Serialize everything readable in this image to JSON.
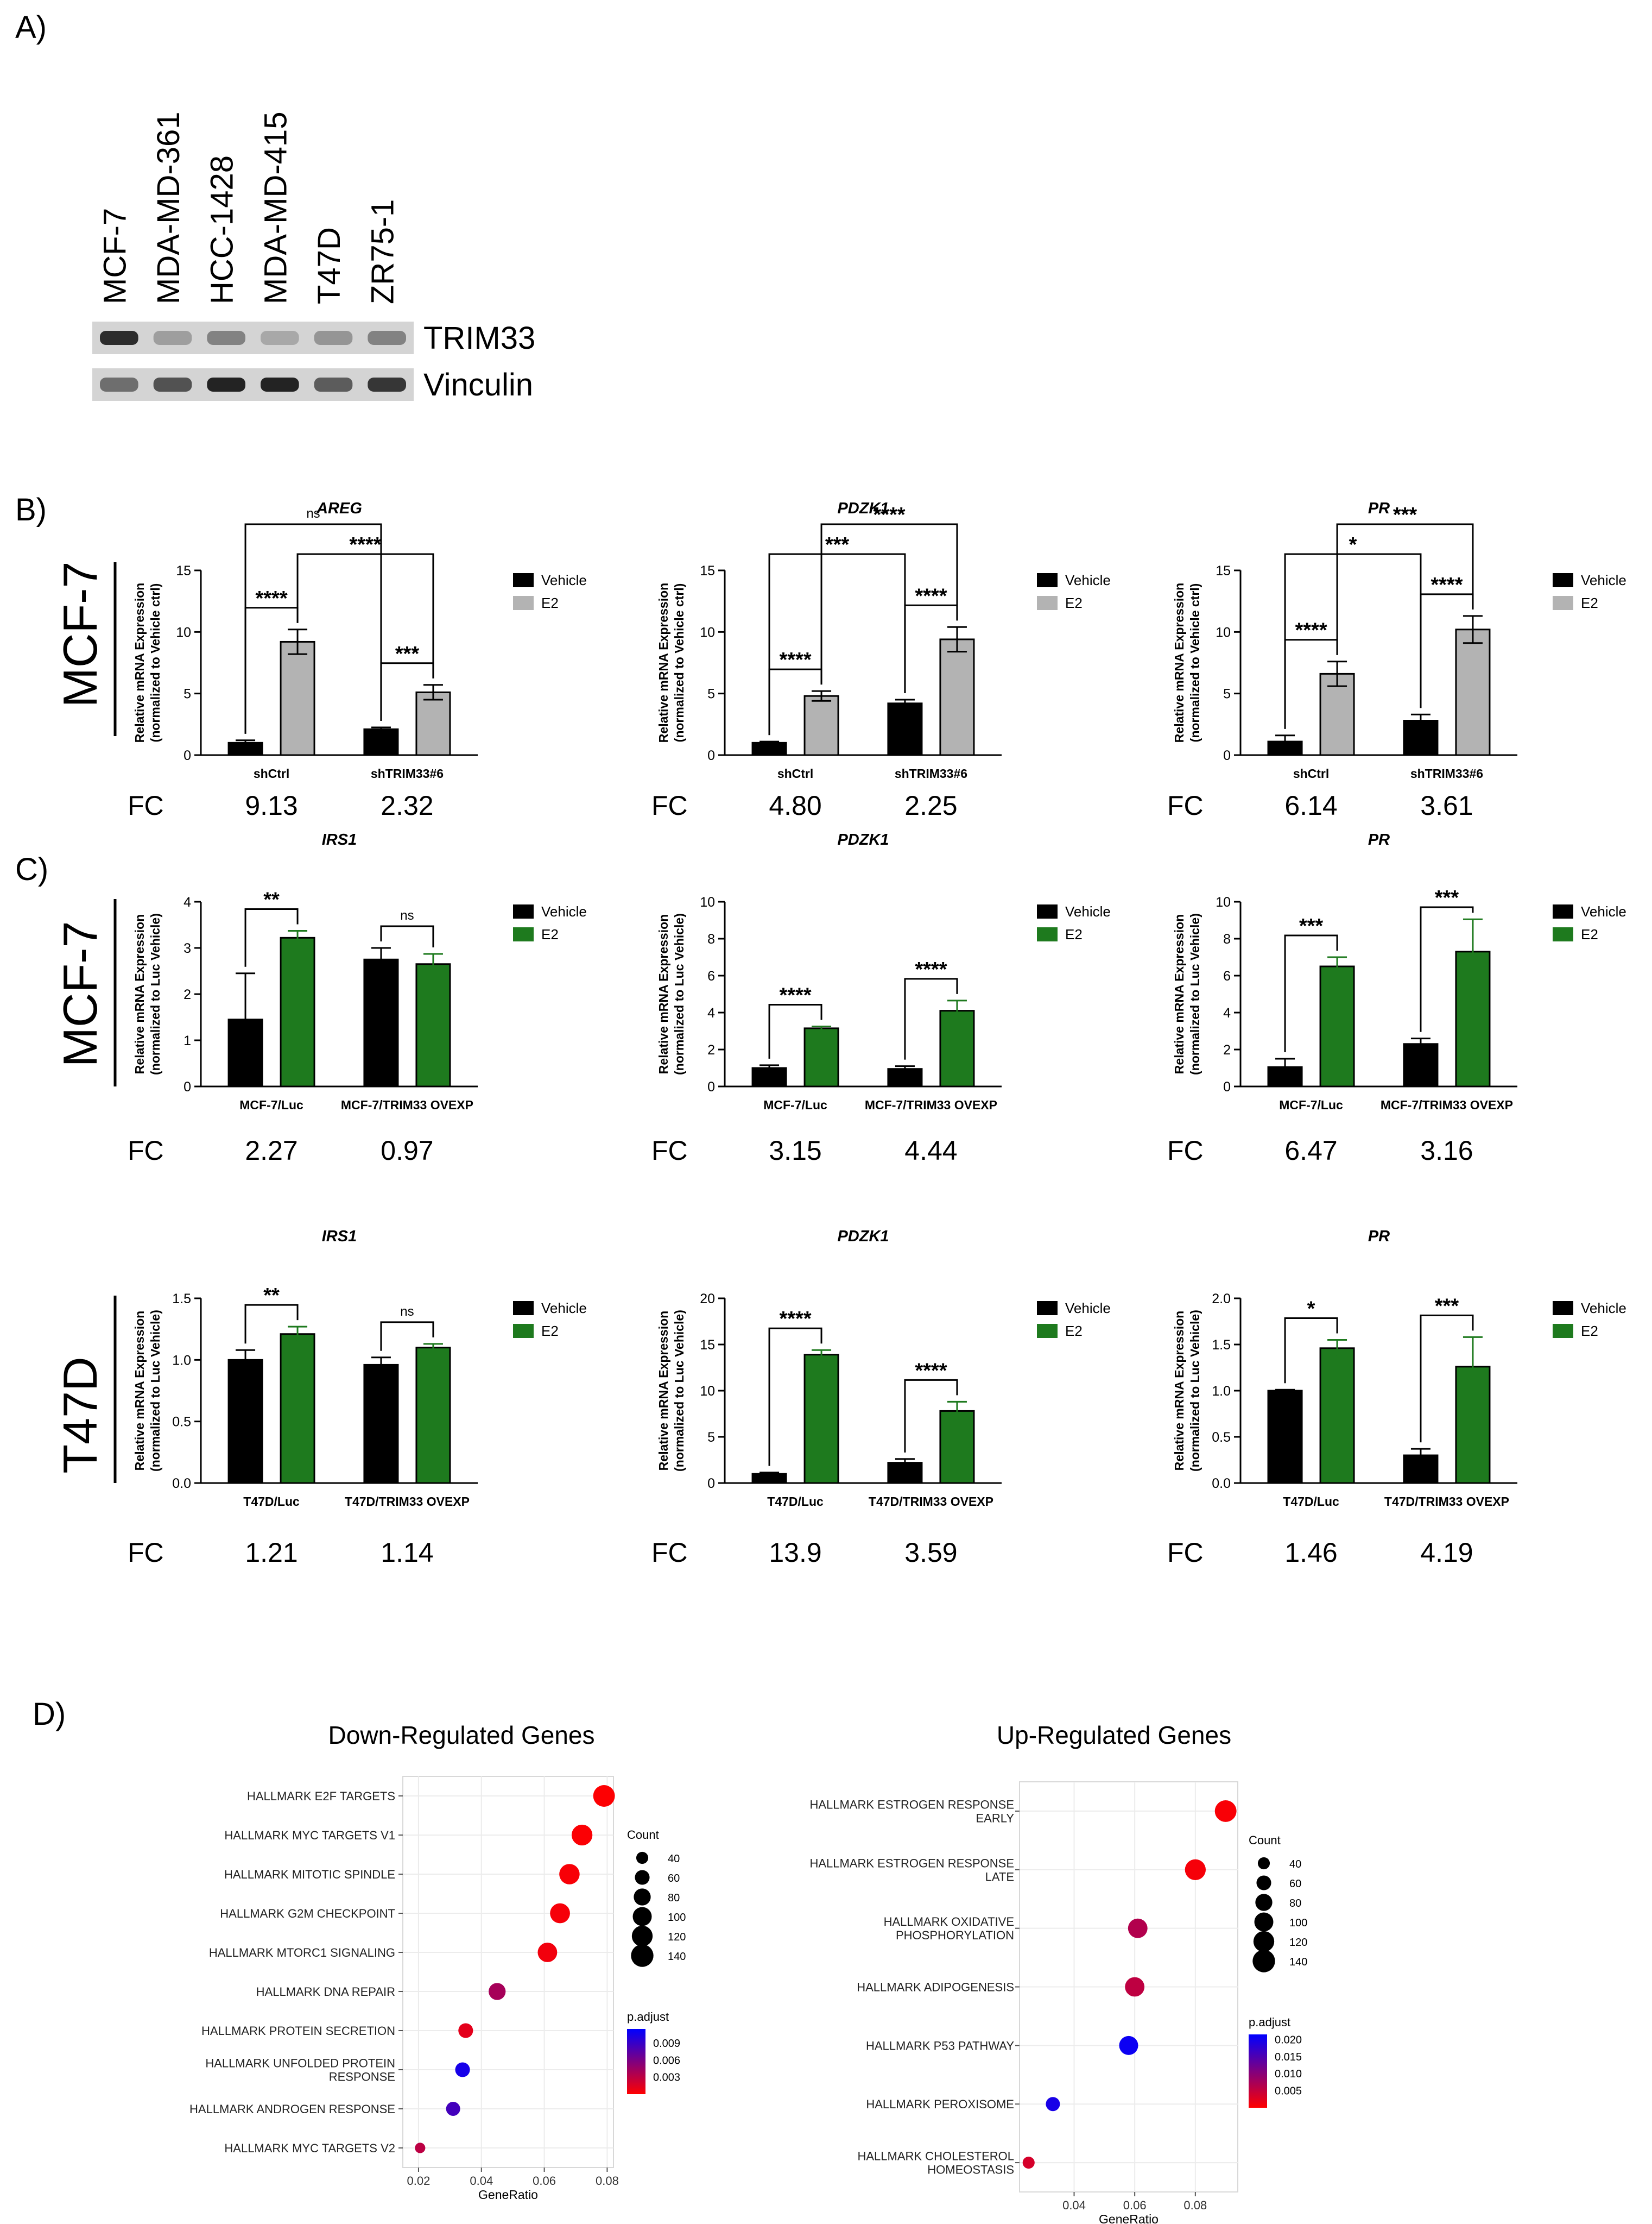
{
  "panels": {
    "A": "A)",
    "B": "B)",
    "C": "C)",
    "D": "D)"
  },
  "colors": {
    "vehicle": "#000000",
    "e2_B": "#b3b3b3",
    "e2_C": "#1e7a1e",
    "padj_high": "#ff0000",
    "padj_low": "#0000ff",
    "row_label_line": "#000000"
  },
  "western": {
    "lanes": [
      "MCF-7",
      "MDA-MD-361",
      "HCC-1428",
      "MDA-MD-415",
      "T47D",
      "ZR75-1"
    ],
    "bands": [
      {
        "name": "TRIM33",
        "intensity": [
          0.9,
          0.3,
          0.45,
          0.25,
          0.35,
          0.45
        ]
      },
      {
        "name": "Vinculin",
        "intensity": [
          0.55,
          0.7,
          0.95,
          0.95,
          0.65,
          0.85
        ]
      }
    ]
  },
  "row_labels": {
    "B": "MCF-7",
    "C1": "MCF-7",
    "C2": "T47D"
  },
  "fc_label": "FC",
  "legend": {
    "vehicle": "Vehicle",
    "e2": "E2"
  },
  "chart_data": [
    {
      "id": "B-AREG",
      "row": "B",
      "col": 0,
      "type": "bar",
      "title": "AREG",
      "ylabel": [
        "Relative mRNA Expression",
        "(normalized to Vehicle ctrl)"
      ],
      "ylim": [
        0,
        15
      ],
      "yticks": [
        0,
        5,
        10,
        15
      ],
      "yticklabels": [
        "0",
        "5",
        "10",
        "15"
      ],
      "categories": [
        "shCtrl",
        "shTRIM33#6"
      ],
      "series": [
        {
          "name": "Vehicle",
          "values": [
            1.0,
            2.1
          ],
          "errors": [
            0.2,
            0.15
          ]
        },
        {
          "name": "E2",
          "values": [
            9.2,
            5.1
          ],
          "errors": [
            1.0,
            0.6
          ]
        }
      ],
      "fc": [
        "9.13",
        "2.32"
      ],
      "brackets": [
        {
          "from": [
            0,
            0
          ],
          "to": [
            0,
            1
          ],
          "label": "****"
        },
        {
          "from": [
            1,
            0
          ],
          "to": [
            1,
            1
          ],
          "label": "***"
        },
        {
          "from": [
            0,
            1
          ],
          "to": [
            1,
            1
          ],
          "label": "****"
        },
        {
          "from": [
            0,
            0
          ],
          "to": [
            1,
            0
          ],
          "label": "ns"
        }
      ]
    },
    {
      "id": "B-PDZK1",
      "row": "B",
      "col": 1,
      "type": "bar",
      "title": "PDZK1",
      "ylabel": [
        "Relative mRNA Expression",
        "(normalized to Vehicle ctrl)"
      ],
      "ylim": [
        0,
        15
      ],
      "yticks": [
        0,
        5,
        10,
        15
      ],
      "yticklabels": [
        "0",
        "5",
        "10",
        "15"
      ],
      "categories": [
        "shCtrl",
        "shTRIM33#6"
      ],
      "series": [
        {
          "name": "Vehicle",
          "values": [
            1.0,
            4.2
          ],
          "errors": [
            0.1,
            0.3
          ]
        },
        {
          "name": "E2",
          "values": [
            4.8,
            9.4
          ],
          "errors": [
            0.4,
            1.0
          ]
        }
      ],
      "fc": [
        "4.80",
        "2.25"
      ],
      "brackets": [
        {
          "from": [
            0,
            0
          ],
          "to": [
            0,
            1
          ],
          "label": "****"
        },
        {
          "from": [
            1,
            0
          ],
          "to": [
            1,
            1
          ],
          "label": "****"
        },
        {
          "from": [
            0,
            0
          ],
          "to": [
            1,
            0
          ],
          "label": "***"
        },
        {
          "from": [
            0,
            1
          ],
          "to": [
            1,
            1
          ],
          "label": "****"
        }
      ]
    },
    {
      "id": "B-PR",
      "row": "B",
      "col": 2,
      "type": "bar",
      "title": "PR",
      "ylabel": [
        "Relative mRNA Expression",
        "(normalized to Vehicle ctrl)"
      ],
      "ylim": [
        0,
        15
      ],
      "yticks": [
        0,
        5,
        10,
        15
      ],
      "yticklabels": [
        "0",
        "5",
        "10",
        "15"
      ],
      "categories": [
        "shCtrl",
        "shTRIM33#6"
      ],
      "series": [
        {
          "name": "Vehicle",
          "values": [
            1.1,
            2.8
          ],
          "errors": [
            0.5,
            0.5
          ]
        },
        {
          "name": "E2",
          "values": [
            6.6,
            10.2
          ],
          "errors": [
            1.0,
            1.1
          ]
        }
      ],
      "fc": [
        "6.14",
        "3.61"
      ],
      "brackets": [
        {
          "from": [
            0,
            0
          ],
          "to": [
            0,
            1
          ],
          "label": "****"
        },
        {
          "from": [
            1,
            0
          ],
          "to": [
            1,
            1
          ],
          "label": "****"
        },
        {
          "from": [
            0,
            0
          ],
          "to": [
            1,
            0
          ],
          "label": "*"
        },
        {
          "from": [
            0,
            1
          ],
          "to": [
            1,
            1
          ],
          "label": "***"
        }
      ]
    },
    {
      "id": "C1-IRS1",
      "row": "C1",
      "col": 0,
      "type": "bar",
      "title": "IRS1",
      "ylabel": [
        "Relative mRNA Expression",
        "(normalized to Luc Vehicle)"
      ],
      "ylim": [
        0,
        4
      ],
      "yticks": [
        0,
        1,
        2,
        3,
        4
      ],
      "yticklabels": [
        "0",
        "1",
        "2",
        "3",
        "4"
      ],
      "categories": [
        "MCF-7/Luc",
        "MCF-7/TRIM33 OVEXP"
      ],
      "series": [
        {
          "name": "Vehicle",
          "values": [
            1.45,
            2.75
          ],
          "errors": [
            1.0,
            0.25
          ]
        },
        {
          "name": "E2",
          "values": [
            3.22,
            2.65
          ],
          "errors": [
            0.15,
            0.22
          ]
        }
      ],
      "fc": [
        "2.27",
        "0.97"
      ],
      "brackets": [
        {
          "from": [
            0,
            0
          ],
          "to": [
            0,
            1
          ],
          "label": "**"
        },
        {
          "from": [
            1,
            0
          ],
          "to": [
            1,
            1
          ],
          "label": "ns"
        }
      ]
    },
    {
      "id": "C1-PDZK1",
      "row": "C1",
      "col": 1,
      "type": "bar",
      "title": "PDZK1",
      "ylabel": [
        "Relative mRNA Expression",
        "(normalized to Luc Vehicle)"
      ],
      "ylim": [
        0,
        10
      ],
      "yticks": [
        0,
        2,
        4,
        6,
        8,
        10
      ],
      "yticklabels": [
        "0",
        "2",
        "4",
        "6",
        "8",
        "10"
      ],
      "categories": [
        "MCF-7/Luc",
        "MCF-7/TRIM33 OVEXP"
      ],
      "series": [
        {
          "name": "Vehicle",
          "values": [
            1.0,
            0.95
          ],
          "errors": [
            0.15,
            0.15
          ]
        },
        {
          "name": "E2",
          "values": [
            3.15,
            4.1
          ],
          "errors": [
            0.1,
            0.55
          ]
        }
      ],
      "fc": [
        "3.15",
        "4.44"
      ],
      "brackets": [
        {
          "from": [
            0,
            0
          ],
          "to": [
            0,
            1
          ],
          "label": "****"
        },
        {
          "from": [
            1,
            0
          ],
          "to": [
            1,
            1
          ],
          "label": "****"
        }
      ]
    },
    {
      "id": "C1-PR",
      "row": "C1",
      "col": 2,
      "type": "bar",
      "title": "PR",
      "ylabel": [
        "Relative mRNA Expression",
        "(normalized to Luc Vehicle)"
      ],
      "ylim": [
        0,
        10
      ],
      "yticks": [
        0,
        2,
        4,
        6,
        8,
        10
      ],
      "yticklabels": [
        "0",
        "2",
        "4",
        "6",
        "8",
        "10"
      ],
      "categories": [
        "MCF-7/Luc",
        "MCF-7/TRIM33 OVEXP"
      ],
      "series": [
        {
          "name": "Vehicle",
          "values": [
            1.05,
            2.3
          ],
          "errors": [
            0.45,
            0.3
          ]
        },
        {
          "name": "E2",
          "values": [
            6.5,
            7.3
          ],
          "errors": [
            0.5,
            1.75
          ]
        }
      ],
      "fc": [
        "6.47",
        "3.16"
      ],
      "brackets": [
        {
          "from": [
            0,
            0
          ],
          "to": [
            0,
            1
          ],
          "label": "***"
        },
        {
          "from": [
            1,
            0
          ],
          "to": [
            1,
            1
          ],
          "label": "***"
        }
      ]
    },
    {
      "id": "C2-IRS1",
      "row": "C2",
      "col": 0,
      "type": "bar",
      "title": "IRS1",
      "ylabel": [
        "Relative mRNA Expression",
        "(normalized to Luc Vehicle)"
      ],
      "ylim": [
        0,
        1.5
      ],
      "yticks": [
        0,
        0.5,
        1.0,
        1.5
      ],
      "yticklabels": [
        "0.0",
        "0.5",
        "1.0",
        "1.5"
      ],
      "categories": [
        "T47D/Luc",
        "T47D/TRIM33 OVEXP"
      ],
      "series": [
        {
          "name": "Vehicle",
          "values": [
            1.0,
            0.96
          ],
          "errors": [
            0.08,
            0.06
          ]
        },
        {
          "name": "E2",
          "values": [
            1.21,
            1.1
          ],
          "errors": [
            0.06,
            0.03
          ]
        }
      ],
      "fc": [
        "1.21",
        "1.14"
      ],
      "brackets": [
        {
          "from": [
            0,
            0
          ],
          "to": [
            0,
            1
          ],
          "label": "**"
        },
        {
          "from": [
            1,
            0
          ],
          "to": [
            1,
            1
          ],
          "label": "ns"
        }
      ]
    },
    {
      "id": "C2-PDZK1",
      "row": "C2",
      "col": 1,
      "type": "bar",
      "title": "PDZK1",
      "ylabel": [
        "Relative mRNA Expression",
        "(normalized to Luc Vehicle)"
      ],
      "ylim": [
        0,
        20
      ],
      "yticks": [
        0,
        5,
        10,
        15,
        20
      ],
      "yticklabels": [
        "0",
        "5",
        "10",
        "15",
        "20"
      ],
      "categories": [
        "T47D/Luc",
        "T47D/TRIM33 OVEXP"
      ],
      "series": [
        {
          "name": "Vehicle",
          "values": [
            1.0,
            2.2
          ],
          "errors": [
            0.15,
            0.4
          ]
        },
        {
          "name": "E2",
          "values": [
            13.9,
            7.8
          ],
          "errors": [
            0.5,
            1.0
          ]
        }
      ],
      "fc": [
        "13.9",
        "3.59"
      ],
      "brackets": [
        {
          "from": [
            0,
            0
          ],
          "to": [
            0,
            1
          ],
          "label": "****"
        },
        {
          "from": [
            1,
            0
          ],
          "to": [
            1,
            1
          ],
          "label": "****"
        }
      ]
    },
    {
      "id": "C2-PR",
      "row": "C2",
      "col": 2,
      "type": "bar",
      "title": "PR",
      "ylabel": [
        "Relative mRNA Expression",
        "(normalized to Luc Vehicle)"
      ],
      "ylim": [
        0,
        2.0
      ],
      "yticks": [
        0,
        0.5,
        1.0,
        1.5,
        2.0
      ],
      "yticklabels": [
        "0.0",
        "0.5",
        "1.0",
        "1.5",
        "2.0"
      ],
      "categories": [
        "T47D/Luc",
        "T47D/TRIM33 OVEXP"
      ],
      "series": [
        {
          "name": "Vehicle",
          "values": [
            1.0,
            0.3
          ],
          "errors": [
            0.01,
            0.07
          ]
        },
        {
          "name": "E2",
          "values": [
            1.46,
            1.26
          ],
          "errors": [
            0.09,
            0.32
          ]
        }
      ],
      "fc": [
        "1.46",
        "4.19"
      ],
      "brackets": [
        {
          "from": [
            0,
            0
          ],
          "to": [
            0,
            1
          ],
          "label": "*"
        },
        {
          "from": [
            1,
            0
          ],
          "to": [
            1,
            1
          ],
          "label": "***"
        }
      ]
    },
    {
      "id": "D-down",
      "type": "scatter",
      "title": "Down-Regulated Genes",
      "xlabel": "GeneRatio",
      "xlim": [
        0.015,
        0.082
      ],
      "xticks": [
        0.02,
        0.04,
        0.06,
        0.08
      ],
      "xticklabels": [
        "0.02",
        "0.04",
        "0.06",
        "0.08"
      ],
      "terms": [
        {
          "label": [
            "HALLMARK E2F TARGETS"
          ],
          "gene_ratio": 0.079,
          "count": 130,
          "p_adjust": 0.0001
        },
        {
          "label": [
            "HALLMARK MYC TARGETS V1"
          ],
          "gene_ratio": 0.072,
          "count": 120,
          "p_adjust": 0.0002
        },
        {
          "label": [
            "HALLMARK MITOTIC SPINDLE"
          ],
          "gene_ratio": 0.068,
          "count": 115,
          "p_adjust": 0.0003
        },
        {
          "label": [
            "HALLMARK G2M CHECKPOINT"
          ],
          "gene_ratio": 0.065,
          "count": 110,
          "p_adjust": 0.0004
        },
        {
          "label": [
            "HALLMARK MTORC1 SIGNALING"
          ],
          "gene_ratio": 0.061,
          "count": 105,
          "p_adjust": 0.0006
        },
        {
          "label": [
            "HALLMARK DNA REPAIR"
          ],
          "gene_ratio": 0.045,
          "count": 80,
          "p_adjust": 0.004
        },
        {
          "label": [
            "HALLMARK PROTEIN SECRETION"
          ],
          "gene_ratio": 0.035,
          "count": 60,
          "p_adjust": 0.0012
        },
        {
          "label": [
            "HALLMARK UNFOLDED PROTEIN",
            "RESPONSE"
          ],
          "gene_ratio": 0.034,
          "count": 60,
          "p_adjust": 0.0105
        },
        {
          "label": [
            "HALLMARK ANDROGEN RESPONSE"
          ],
          "gene_ratio": 0.031,
          "count": 55,
          "p_adjust": 0.0085
        },
        {
          "label": [
            "HALLMARK MYC TARGETS V2"
          ],
          "gene_ratio": 0.0205,
          "count": 30,
          "p_adjust": 0.003
        }
      ],
      "count_legend": {
        "title": "Count",
        "values": [
          40,
          60,
          80,
          100,
          120,
          140
        ]
      },
      "padj_legend": {
        "title": "p.adjust",
        "min": 0.0,
        "max": 0.0115,
        "ticks": [
          0.003,
          0.006,
          0.009
        ],
        "ticklabels": [
          "0.003",
          "0.006",
          "0.009"
        ]
      }
    },
    {
      "id": "D-up",
      "type": "scatter",
      "title": "Up-Regulated Genes",
      "xlabel": "GeneRatio",
      "xlim": [
        0.022,
        0.094
      ],
      "xticks": [
        0.04,
        0.06,
        0.08
      ],
      "xticklabels": [
        "0.04",
        "0.06",
        "0.08"
      ],
      "terms": [
        {
          "label": [
            "HALLMARK ESTROGEN RESPONSE",
            "EARLY"
          ],
          "gene_ratio": 0.09,
          "count": 130,
          "p_adjust": 0.0005
        },
        {
          "label": [
            "HALLMARK ESTROGEN RESPONSE",
            "LATE"
          ],
          "gene_ratio": 0.08,
          "count": 120,
          "p_adjust": 0.0008
        },
        {
          "label": [
            "HALLMARK OXIDATIVE",
            "PHOSPHORYLATION"
          ],
          "gene_ratio": 0.061,
          "count": 105,
          "p_adjust": 0.0065
        },
        {
          "label": [
            "HALLMARK ADIPOGENESIS"
          ],
          "gene_ratio": 0.06,
          "count": 105,
          "p_adjust": 0.0055
        },
        {
          "label": [
            "HALLMARK P53 PATHWAY"
          ],
          "gene_ratio": 0.058,
          "count": 100,
          "p_adjust": 0.0205
        },
        {
          "label": [
            "HALLMARK PEROXISOME"
          ],
          "gene_ratio": 0.033,
          "count": 55,
          "p_adjust": 0.0195
        },
        {
          "label": [
            "HALLMARK CHOLESTEROL",
            "HOMEOSTASIS"
          ],
          "gene_ratio": 0.025,
          "count": 40,
          "p_adjust": 0.0035
        }
      ],
      "count_legend": {
        "title": "Count",
        "values": [
          40,
          60,
          80,
          100,
          120,
          140
        ]
      },
      "padj_legend": {
        "title": "p.adjust",
        "min": 0.0,
        "max": 0.0215,
        "ticks": [
          0.005,
          0.01,
          0.015,
          0.02
        ],
        "ticklabels": [
          "0.005",
          "0.010",
          "0.015",
          "0.020"
        ]
      }
    }
  ]
}
